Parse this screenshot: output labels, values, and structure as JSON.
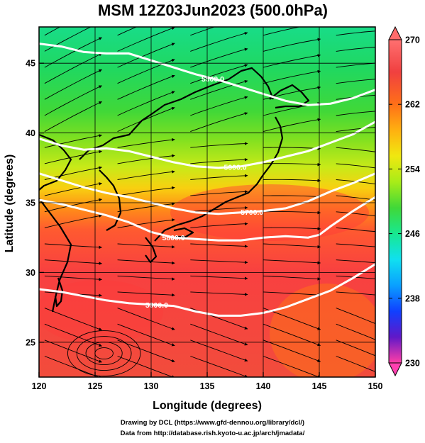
{
  "figure": {
    "title": "MSM 12Z03Jun2023 (500.0hPa)",
    "xlabel": "Longitude (degrees)",
    "ylabel": "Latitude  (degrees)",
    "credit_line1": "Drawing by DCL (https://www.gfd-dennou.org/library/dcl/)",
    "credit_line2": "Data from http://database.rish.kyoto-u.ac.jp/arch/jmadata/"
  },
  "map": {
    "lon_range": [
      120,
      150
    ],
    "lat_range": [
      22.5,
      47.6
    ],
    "lon_ticks": [
      "120",
      "125",
      "130",
      "135",
      "140",
      "145",
      "150"
    ],
    "lat_ticks": [
      "25",
      "30",
      "35",
      "40",
      "45"
    ],
    "grid": true,
    "shaded_field_range": [
      230,
      270
    ],
    "geopotential_contours": [
      {
        "label": "5500.0",
        "points": [
          [
            120,
            46.4
          ],
          [
            122,
            46.2
          ],
          [
            124,
            45.8
          ],
          [
            126,
            45.7
          ],
          [
            128,
            45.7
          ],
          [
            130,
            45.2
          ],
          [
            132,
            44.7
          ],
          [
            134,
            44.2
          ],
          [
            136,
            43.8
          ],
          [
            138,
            43.3
          ],
          [
            140,
            42.8
          ],
          [
            142,
            42.3
          ],
          [
            144,
            42.0
          ],
          [
            146,
            42.1
          ],
          [
            148,
            42.5
          ],
          [
            150,
            43.1
          ]
        ]
      },
      {
        "label": "5600.0",
        "points": [
          [
            120,
            39.6
          ],
          [
            122,
            39.1
          ],
          [
            124,
            38.8
          ],
          [
            126,
            38.9
          ],
          [
            128,
            38.7
          ],
          [
            130,
            38.3
          ],
          [
            132,
            37.9
          ],
          [
            134,
            37.6
          ],
          [
            136,
            37.5
          ],
          [
            138,
            37.6
          ],
          [
            140,
            37.9
          ],
          [
            142,
            38.3
          ],
          [
            144,
            38.7
          ],
          [
            146,
            39.3
          ],
          [
            148,
            39.9
          ],
          [
            150,
            40.8
          ]
        ]
      },
      {
        "label": "5700.0",
        "points": [
          [
            120,
            37.1
          ],
          [
            122,
            36.6
          ],
          [
            124,
            36.1
          ],
          [
            126,
            35.7
          ],
          [
            128,
            35.4
          ],
          [
            130,
            35.0
          ],
          [
            132,
            34.6
          ],
          [
            134,
            34.3
          ],
          [
            136,
            34.2
          ],
          [
            138,
            34.3
          ],
          [
            140,
            34.4
          ],
          [
            142,
            34.6
          ],
          [
            144,
            35.1
          ],
          [
            146,
            35.8
          ],
          [
            148,
            36.4
          ],
          [
            150,
            37.1
          ]
        ]
      },
      {
        "label": "5800.0",
        "points": [
          [
            120,
            35.2
          ],
          [
            122,
            34.9
          ],
          [
            124,
            34.5
          ],
          [
            126,
            34.1
          ],
          [
            128,
            33.6
          ],
          [
            130,
            32.9
          ],
          [
            132,
            32.5
          ],
          [
            134,
            32.4
          ],
          [
            136,
            32.3
          ],
          [
            138,
            32.3
          ],
          [
            140,
            32.5
          ],
          [
            142,
            32.6
          ],
          [
            144,
            32.5
          ],
          [
            145,
            32.7
          ],
          [
            146,
            33.3
          ],
          [
            148,
            34.4
          ],
          [
            150,
            35.4
          ]
        ]
      },
      {
        "label": "5900.0",
        "points": [
          [
            120,
            28.8
          ],
          [
            122,
            28.6
          ],
          [
            124,
            28.3
          ],
          [
            126,
            28.0
          ],
          [
            128,
            27.8
          ],
          [
            130,
            27.7
          ],
          [
            132,
            27.6
          ],
          [
            134,
            27.2
          ],
          [
            136,
            26.9
          ],
          [
            138,
            26.9
          ],
          [
            140,
            27.1
          ],
          [
            142,
            27.5
          ],
          [
            144,
            28.1
          ],
          [
            146,
            28.7
          ],
          [
            148,
            29.6
          ],
          [
            150,
            30.6
          ]
        ]
      }
    ]
  },
  "colorbar": {
    "min": 230,
    "max": 270,
    "tick_labels": [
      "270",
      "262",
      "254",
      "246",
      "238",
      "230"
    ],
    "colors": [
      "#ff3ea6",
      "#c018c0",
      "#4018d0",
      "#1040ff",
      "#0aa0ff",
      "#10e0f0",
      "#18e890",
      "#20d838",
      "#60e020",
      "#b8ec18",
      "#f0e810",
      "#ffb010",
      "#ff7018",
      "#f04040",
      "#ff7070"
    ]
  }
}
